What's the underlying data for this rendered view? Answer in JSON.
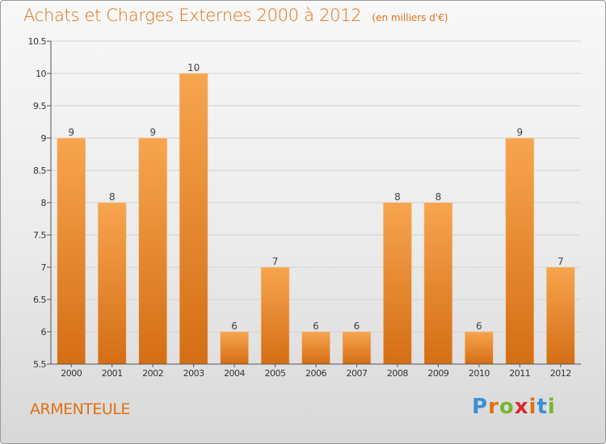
{
  "title": "Achats et Charges Externes 2000 à 2012",
  "unit_label": "(en milliers d'€)",
  "commune": "ARMENTEULE",
  "logo": {
    "letters": [
      "P",
      "r",
      "o",
      "x",
      "i",
      "t",
      "i"
    ],
    "colors": [
      "#3a8fd6",
      "#e07010",
      "#7ab52c",
      "#d9282f",
      "#e07010",
      "#3a8fd6",
      "#7ab52c"
    ]
  },
  "colors": {
    "accent": "#e07010",
    "bar_top": "#f7a54f",
    "bar_bottom": "#d46e15"
  },
  "chart_data": {
    "type": "bar",
    "title": "Achats et Charges Externes 2000 à 2012",
    "subtitle": "(en milliers d'€)",
    "categories": [
      "2000",
      "2001",
      "2002",
      "2003",
      "2004",
      "2005",
      "2006",
      "2007",
      "2008",
      "2009",
      "2010",
      "2011",
      "2012"
    ],
    "values": [
      9,
      8,
      9,
      10,
      6,
      7,
      6,
      6,
      8,
      8,
      6,
      9,
      7
    ],
    "ylim": [
      5.5,
      10.5
    ],
    "yticks": [
      "5.5",
      "6",
      "6.5",
      "7",
      "7.5",
      "8",
      "8.5",
      "9",
      "9.5",
      "10",
      "10.5"
    ],
    "grid": true
  }
}
